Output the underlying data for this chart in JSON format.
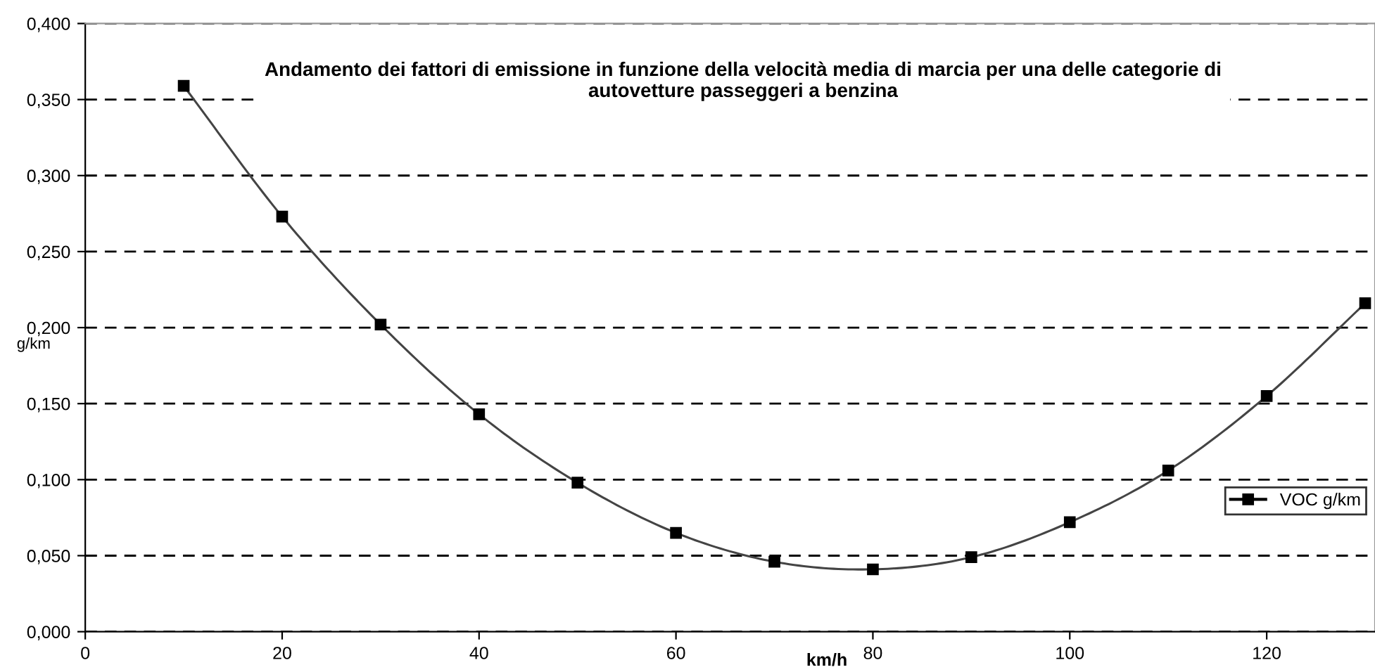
{
  "chart_data": {
    "type": "line",
    "title": "Andamento dei fattori di emissione in funzione della velocità media di marcia per una delle categorie di\nautovetture passeggeri a benzina",
    "xlabel": "km/h",
    "ylabel": "g/km",
    "x": [
      10,
      20,
      30,
      40,
      50,
      60,
      70,
      80,
      90,
      100,
      110,
      120,
      130
    ],
    "series": [
      {
        "name": "VOC g/km",
        "color": "#000000",
        "values": [
          0.359,
          0.273,
          0.202,
          0.143,
          0.098,
          0.065,
          0.046,
          0.041,
          0.049,
          0.072,
          0.106,
          0.155,
          0.216
        ]
      }
    ],
    "xlim": [
      0,
      131
    ],
    "xticks": [
      0,
      20,
      40,
      60,
      80,
      100,
      120
    ],
    "ylim": [
      0,
      0.4
    ],
    "yticks": [
      {
        "value": 0,
        "label": "0,000"
      },
      {
        "value": 0.05,
        "label": "0,050"
      },
      {
        "value": 0.1,
        "label": "0,100"
      },
      {
        "value": 0.15,
        "label": "0,150"
      },
      {
        "value": 0.2,
        "label": "0,200"
      },
      {
        "value": 0.25,
        "label": "0,250"
      },
      {
        "value": 0.3,
        "label": "0,300"
      },
      {
        "value": 0.35,
        "label": "0,350"
      },
      {
        "value": 0.4,
        "label": "0,400"
      }
    ],
    "grid": "y",
    "legend": "right",
    "marker": "square",
    "line_style": "solid"
  }
}
